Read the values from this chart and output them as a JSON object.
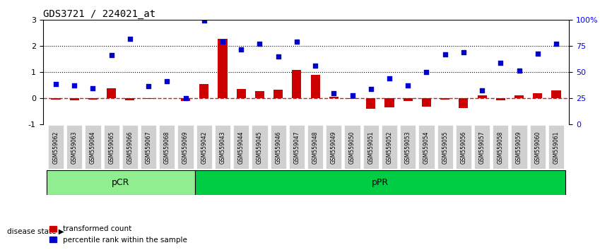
{
  "title": "GDS3721 / 224021_at",
  "categories": [
    "GSM559062",
    "GSM559063",
    "GSM559064",
    "GSM559065",
    "GSM559066",
    "GSM559067",
    "GSM559068",
    "GSM559069",
    "GSM559042",
    "GSM559043",
    "GSM559044",
    "GSM559045",
    "GSM559046",
    "GSM559047",
    "GSM559048",
    "GSM559049",
    "GSM559050",
    "GSM559051",
    "GSM559052",
    "GSM559053",
    "GSM559054",
    "GSM559055",
    "GSM559056",
    "GSM559057",
    "GSM559058",
    "GSM559059",
    "GSM559060",
    "GSM559061"
  ],
  "bar_values": [
    -0.05,
    -0.08,
    -0.05,
    0.38,
    -0.07,
    -0.02,
    0.0,
    -0.12,
    0.53,
    2.28,
    0.35,
    0.28,
    0.32,
    1.07,
    0.9,
    0.05,
    -0.03,
    -0.42,
    -0.35,
    -0.1,
    -0.32,
    -0.06,
    -0.38,
    0.12,
    -0.08,
    0.1,
    0.18,
    0.3
  ],
  "scatter_values": [
    0.55,
    0.48,
    0.38,
    1.65,
    2.28,
    0.45,
    0.65,
    0.0,
    2.98,
    2.18,
    1.88,
    2.1,
    1.6,
    2.18,
    1.25,
    0.2,
    0.12,
    0.35,
    0.75,
    0.48,
    1.0,
    1.68,
    1.75,
    0.3,
    1.35,
    1.05,
    1.72,
    2.1
  ],
  "pCR_count": 8,
  "ylim_left": [
    -1,
    3
  ],
  "ylim_right": [
    0,
    100
  ],
  "bar_color": "#cc0000",
  "scatter_color": "#0000cc",
  "dashed_line_color": "#cc0000",
  "dotted_line_color": "#000000",
  "pCR_color": "#90ee90",
  "pPR_color": "#00cc44",
  "label_bar": "transformed count",
  "label_scatter": "percentile rank within the sample",
  "disease_state_label": "disease state",
  "pCR_label": "pCR",
  "pPR_label": "pPR"
}
